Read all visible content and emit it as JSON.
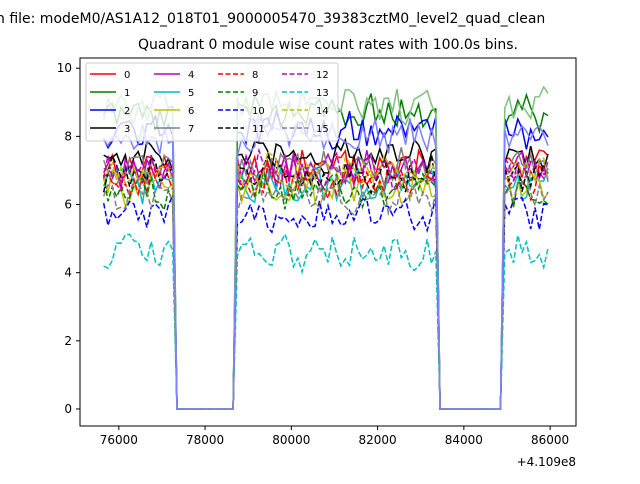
{
  "figure": {
    "suptitle": "n file: modeM0/AS1A12_018T01_9000005470_39383cztM0_level2_quad_clean",
    "title": "Quadrant 0 module wise count rates with 100.0s bins.",
    "offset_label": "+4.109e8"
  },
  "chart_data": {
    "type": "line",
    "title": "Quadrant 0 module wise count rates with 100.0s bins.",
    "xlabel": "",
    "ylabel": "",
    "x_offset": 410900000,
    "xlim": [
      75100,
      86600
    ],
    "ylim": [
      -0.5,
      10.3
    ],
    "xticks": [
      76000,
      78000,
      80000,
      82000,
      84000,
      86000
    ],
    "yticks": [
      0,
      2,
      4,
      6,
      8,
      10
    ],
    "grid": false,
    "legend": {
      "position": "top-left",
      "columns": 4
    },
    "x_start": 75650,
    "x_step": 100,
    "points": 104,
    "gaps": [
      {
        "from": 77350,
        "to": 78650,
        "value": 0
      },
      {
        "from": 83450,
        "to": 84850,
        "value": 0
      }
    ],
    "series": [
      {
        "name": "0",
        "color": "#ff0000",
        "dash": "solid",
        "level": 7.1
      },
      {
        "name": "1",
        "color": "#008000",
        "dash": "solid",
        "level": 8.7
      },
      {
        "name": "2",
        "color": "#0000ff",
        "dash": "solid",
        "level": 8.2
      },
      {
        "name": "3",
        "color": "#000000",
        "dash": "solid",
        "level": 7.4
      },
      {
        "name": "4",
        "color": "#bf00bf",
        "dash": "solid",
        "level": 7.0
      },
      {
        "name": "5",
        "color": "#00bfbf",
        "dash": "solid",
        "level": 6.6
      },
      {
        "name": "6",
        "color": "#bfbf00",
        "dash": "solid",
        "level": 6.5
      },
      {
        "name": "7",
        "color": "#808080",
        "dash": "solid",
        "level": 7.1
      },
      {
        "name": "8",
        "color": "#ff0000",
        "dash": "dashed",
        "level": 6.7
      },
      {
        "name": "9",
        "color": "#008000",
        "dash": "dashed",
        "level": 6.4
      },
      {
        "name": "10",
        "color": "#0000ff",
        "dash": "dashed",
        "level": 5.7
      },
      {
        "name": "11",
        "color": "#000000",
        "dash": "dashed",
        "level": 6.9
      },
      {
        "name": "12",
        "color": "#bf00bf",
        "dash": "dashed",
        "level": 7.0
      },
      {
        "name": "13",
        "color": "#00bfbf",
        "dash": "dashed",
        "level": 4.6
      },
      {
        "name": "14",
        "color": "#bfbf00",
        "dash": "dashed",
        "level": 7.0
      },
      {
        "name": "15",
        "color": "#808080",
        "dash": "dashed",
        "level": 6.3
      }
    ],
    "extra_series": [
      {
        "name": "",
        "color": "#7fbf7f",
        "dash": "solid",
        "level": 8.9
      },
      {
        "name": "",
        "color": "#7f7fff",
        "dash": "solid",
        "level": 8.0
      }
    ]
  }
}
